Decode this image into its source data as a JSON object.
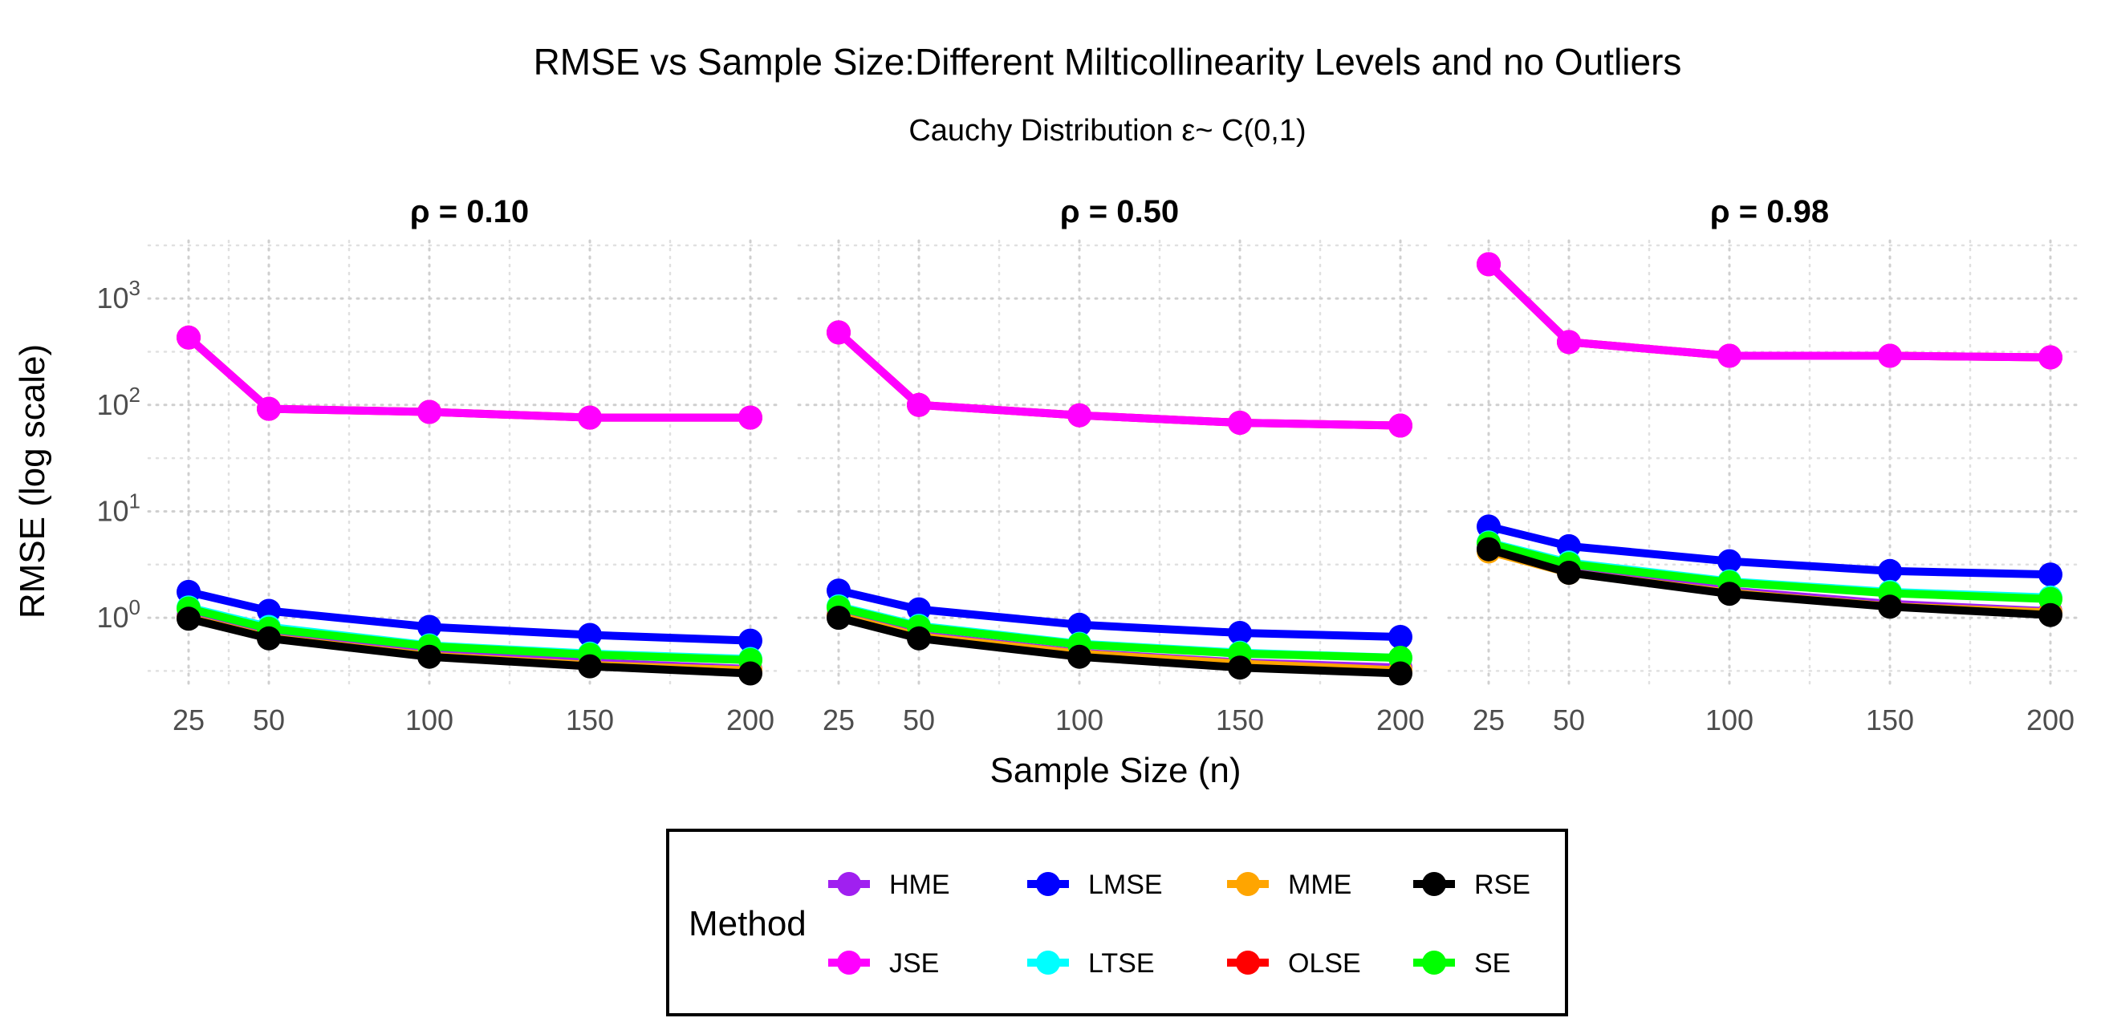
{
  "chart_data": {
    "type": "line",
    "title": "RMSE vs Sample Size:Different Milticollinearity Levels and no Outliers",
    "subtitle": "Cauchy Distribution ε~ C(0,1)",
    "xlabel": "Sample Size (n)",
    "ylabel": "RMSE (log scale)",
    "y_scale": "log10",
    "ylim": [
      0.21,
      3500
    ],
    "xlim": [
      15,
      210
    ],
    "x": [
      25,
      50,
      100,
      150,
      200
    ],
    "x_tick_labels": [
      "25",
      "50",
      "100",
      "150",
      "200"
    ],
    "y_ticks": [
      {
        "value": 1,
        "base": "10",
        "exp": "0"
      },
      {
        "value": 10,
        "base": "10",
        "exp": "1"
      },
      {
        "value": 100,
        "base": "10",
        "exp": "2"
      },
      {
        "value": 1000,
        "base": "10",
        "exp": "3"
      }
    ],
    "grid": true,
    "legend": {
      "title": "Method",
      "position": "bottom",
      "entries": [
        "HME",
        "LMSE",
        "MME",
        "RSE",
        "JSE",
        "LTSE",
        "OLSE",
        "SE"
      ]
    },
    "colors": {
      "HME": "#a020f0",
      "LMSE": "#0000ff",
      "MME": "#ffa500",
      "RSE": "#000000",
      "JSE": "#ff00ff",
      "LTSE": "#00ffff",
      "OLSE": "#ff0000",
      "SE": "#00ff00"
    },
    "panels": [
      {
        "label": "ρ = 0.10",
        "series": [
          {
            "name": "OLSE",
            "values": [
              430,
              92,
              86,
              76,
              76
            ]
          },
          {
            "name": "JSE",
            "values": [
              430,
              92,
              86,
              76,
              76
            ]
          },
          {
            "name": "LMSE",
            "values": [
              1.75,
              1.16,
              0.82,
              0.69,
              0.61
            ]
          },
          {
            "name": "LTSE",
            "values": [
              1.25,
              0.82,
              0.55,
              0.46,
              0.41
            ]
          },
          {
            "name": "HME",
            "values": [
              1.05,
              0.68,
              0.46,
              0.38,
              0.33
            ]
          },
          {
            "name": "MME",
            "values": [
              1.0,
              0.65,
              0.44,
              0.36,
              0.32
            ]
          },
          {
            "name": "SE",
            "values": [
              1.22,
              0.79,
              0.54,
              0.45,
              0.4
            ]
          },
          {
            "name": "RSE",
            "values": [
              0.98,
              0.64,
              0.43,
              0.35,
              0.3
            ]
          }
        ]
      },
      {
        "label": "ρ = 0.50",
        "series": [
          {
            "name": "OLSE",
            "values": [
              480,
              100,
              80,
              68,
              64
            ]
          },
          {
            "name": "JSE",
            "values": [
              480,
              100,
              80,
              68,
              64
            ]
          },
          {
            "name": "LMSE",
            "values": [
              1.8,
              1.2,
              0.86,
              0.72,
              0.66
            ]
          },
          {
            "name": "LTSE",
            "values": [
              1.28,
              0.84,
              0.57,
              0.47,
              0.42
            ]
          },
          {
            "name": "HME",
            "values": [
              1.07,
              0.69,
              0.47,
              0.38,
              0.34
            ]
          },
          {
            "name": "MME",
            "values": [
              1.04,
              0.67,
              0.46,
              0.37,
              0.32
            ]
          },
          {
            "name": "SE",
            "values": [
              1.25,
              0.82,
              0.56,
              0.46,
              0.42
            ]
          },
          {
            "name": "RSE",
            "values": [
              1.0,
              0.64,
              0.43,
              0.34,
              0.3
            ]
          }
        ]
      },
      {
        "label": "ρ = 0.98",
        "series": [
          {
            "name": "OLSE",
            "values": [
              2100,
              390,
              290,
              290,
              280
            ]
          },
          {
            "name": "JSE",
            "values": [
              2100,
              390,
              290,
              290,
              280
            ]
          },
          {
            "name": "LMSE",
            "values": [
              7.2,
              4.7,
              3.4,
              2.75,
              2.55
            ]
          },
          {
            "name": "LTSE",
            "values": [
              5.1,
              3.3,
              2.2,
              1.75,
              1.55
            ]
          },
          {
            "name": "HME",
            "values": [
              4.5,
              2.8,
              1.8,
              1.35,
              1.15
            ]
          },
          {
            "name": "MME",
            "values": [
              4.2,
              2.65,
              1.72,
              1.28,
              1.12
            ]
          },
          {
            "name": "SE",
            "values": [
              5.0,
              3.2,
              2.15,
              1.7,
              1.5
            ]
          },
          {
            "name": "RSE",
            "values": [
              4.4,
              2.65,
              1.68,
              1.27,
              1.06
            ]
          }
        ]
      }
    ]
  }
}
